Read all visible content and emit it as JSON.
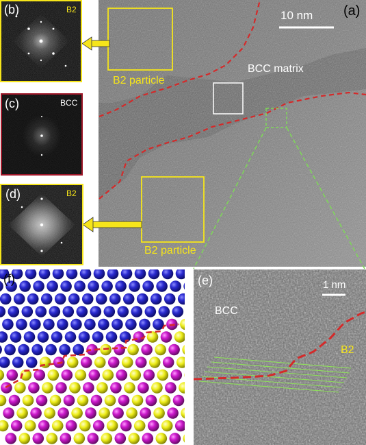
{
  "figure": {
    "panels": {
      "a": {
        "label": "(a)",
        "scale_bar": "10 nm",
        "region_label": "BCC matrix",
        "particle_label_top": "B2 particle",
        "particle_label_bottom": "B2 particle"
      },
      "b": {
        "label": "(b)",
        "phase": "B2"
      },
      "c": {
        "label": "(c)",
        "phase": "BCC"
      },
      "d": {
        "label": "(d)",
        "phase": "B2"
      },
      "e": {
        "label": "(e)",
        "scale_bar": "1 nm",
        "phase_left": "BCC",
        "phase_right": "B2"
      },
      "f": {
        "label": "(f)"
      }
    },
    "colors": {
      "yellow_box": "#f6e51a",
      "red_boundary": "#d42a2a",
      "green_fringes": "#7ed957",
      "bcc_atom": "#2a2ad0",
      "b2_atom_magenta": "#cc19cc",
      "b2_atom_yellow": "#eeee1a"
    }
  }
}
